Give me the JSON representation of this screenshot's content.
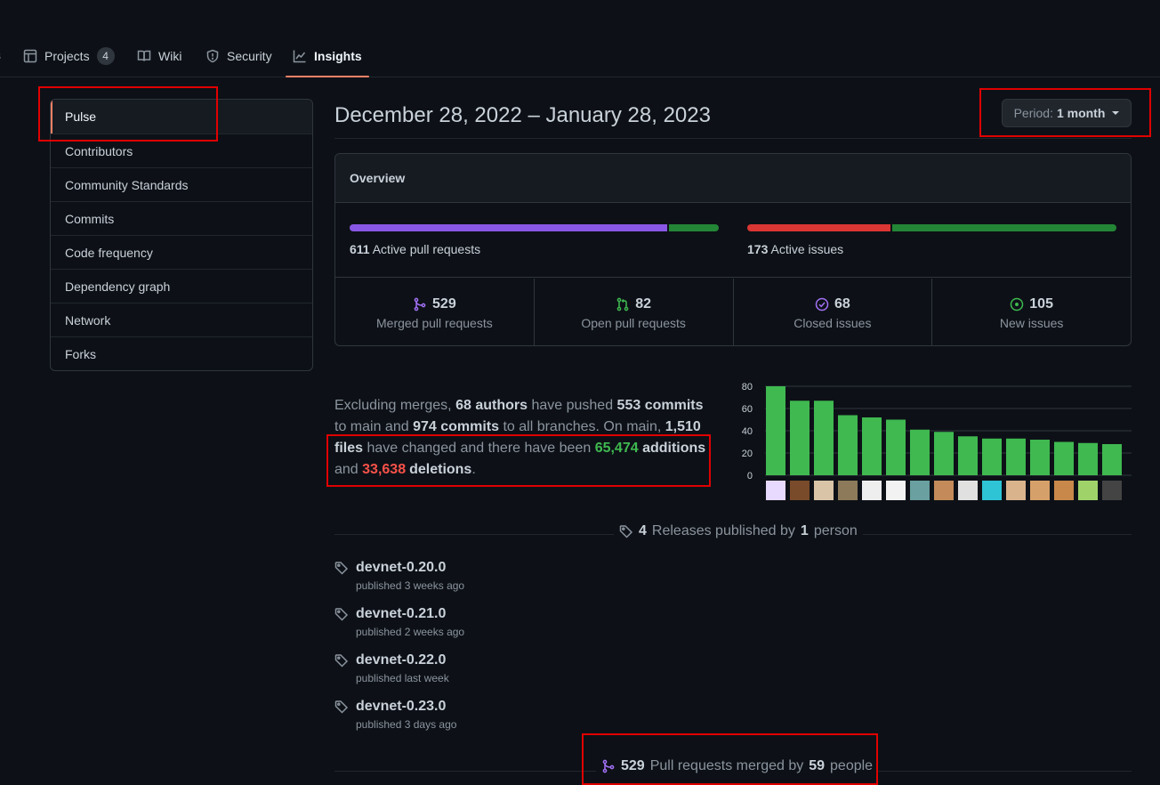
{
  "tabs": [
    {
      "label": "Projects",
      "counter": "4",
      "icon": "table-icon"
    },
    {
      "label": "Wiki",
      "icon": "book-icon"
    },
    {
      "label": "Security",
      "icon": "shield-icon"
    },
    {
      "label": "Insights",
      "icon": "graph-icon",
      "selected": true
    }
  ],
  "sidebar": {
    "items": [
      {
        "label": "Pulse",
        "selected": true
      },
      {
        "label": "Contributors"
      },
      {
        "label": "Community Standards"
      },
      {
        "label": "Commits"
      },
      {
        "label": "Code frequency"
      },
      {
        "label": "Dependency graph"
      },
      {
        "label": "Network"
      },
      {
        "label": "Forks"
      }
    ]
  },
  "header": {
    "date_range": "December 28, 2022 – January 28, 2023",
    "period_label": "Period:",
    "period_value": "1 month"
  },
  "overview": {
    "title": "Overview",
    "pull_requests": {
      "count": "611",
      "label": "Active pull requests",
      "merged_fraction": 0.865,
      "colors": [
        "#8957e5",
        "#238636"
      ]
    },
    "issues": {
      "count": "173",
      "label": "Active issues",
      "closed_fraction": 0.39,
      "colors": [
        "#da3633",
        "#238636"
      ]
    },
    "stats": [
      {
        "value": "529",
        "label": "Merged pull requests",
        "icon": "git-merge-icon",
        "color": "#a371f7"
      },
      {
        "value": "82",
        "label": "Open pull requests",
        "icon": "git-pull-request-icon",
        "color": "#3fb950"
      },
      {
        "value": "68",
        "label": "Closed issues",
        "icon": "issue-closed-icon",
        "color": "#a371f7"
      },
      {
        "value": "105",
        "label": "New issues",
        "icon": "issue-opened-icon",
        "color": "#3fb950"
      }
    ]
  },
  "summary": {
    "t1": "Excluding merges,",
    "authors": "68 authors",
    "t2": "have pushed",
    "commits_main": "553 commits",
    "t3": "to main and",
    "commits_all": "974 commits",
    "t4": "to all branches. On main,",
    "files": "1,510 files",
    "t5": "have changed and there have been",
    "additions_num": "65,474",
    "additions_word": "additions",
    "t6": "and",
    "deletions_num": "33,638",
    "deletions_word": "deletions",
    "t7": "."
  },
  "chart_data": {
    "type": "bar",
    "values": [
      80,
      67,
      67,
      54,
      52,
      50,
      41,
      39,
      35,
      33,
      33,
      32,
      30,
      29,
      28
    ],
    "yticks": [
      "80",
      "60",
      "40",
      "20",
      "0"
    ],
    "ylim": [
      0,
      80
    ],
    "color": "#3fb950"
  },
  "releases": {
    "count": "4",
    "t1": "Releases published by",
    "people": "1",
    "t2": "person",
    "items": [
      {
        "name": "devnet-0.20.0",
        "meta": "published 3 weeks ago"
      },
      {
        "name": "devnet-0.21.0",
        "meta": "published 2 weeks ago"
      },
      {
        "name": "devnet-0.22.0",
        "meta": "published last week"
      },
      {
        "name": "devnet-0.23.0",
        "meta": "published 3 days ago"
      }
    ]
  },
  "merged": {
    "count": "529",
    "t1": "Pull requests merged by",
    "people": "59",
    "t2": "people"
  }
}
